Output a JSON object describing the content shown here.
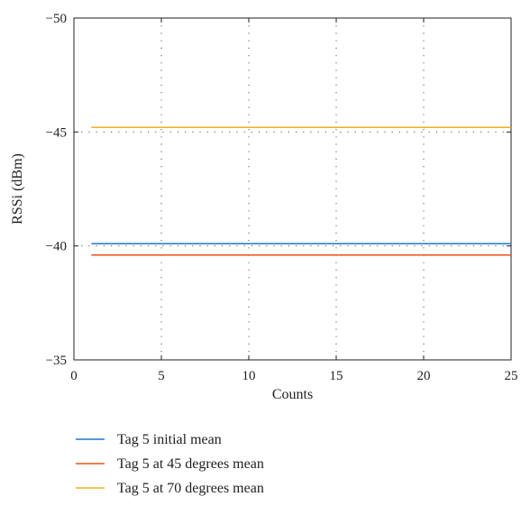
{
  "chart_data": {
    "type": "line",
    "title": "",
    "xlabel": "Counts",
    "ylabel": "RSSi (dBm)",
    "xlim": [
      0,
      25
    ],
    "ylim": [
      -50,
      -35
    ],
    "y_reversed": true,
    "x_ticks": [
      0,
      5,
      10,
      15,
      20,
      25
    ],
    "y_ticks": [
      -50,
      -45,
      -40,
      -35
    ],
    "x_tick_labels": [
      "0",
      "5",
      "10",
      "15",
      "20",
      "25"
    ],
    "y_tick_labels": [
      "−50",
      "−45",
      "−40",
      "−35"
    ],
    "grid": "dotted, both axes",
    "legend_position": "below plot",
    "series": [
      {
        "name": "Tag 5 initial mean",
        "color": "#1f78c8",
        "x": [
          1,
          25
        ],
        "y": [
          -40.1,
          -40.1
        ]
      },
      {
        "name": "Tag 5 at 45 degrees mean",
        "color": "#e8531a",
        "x": [
          1,
          25
        ],
        "y": [
          -39.6,
          -39.6
        ]
      },
      {
        "name": "Tag 5 at 70 degrees mean",
        "color": "#f2b01e",
        "x": [
          1,
          25
        ],
        "y": [
          -45.2,
          -45.2
        ]
      }
    ]
  }
}
